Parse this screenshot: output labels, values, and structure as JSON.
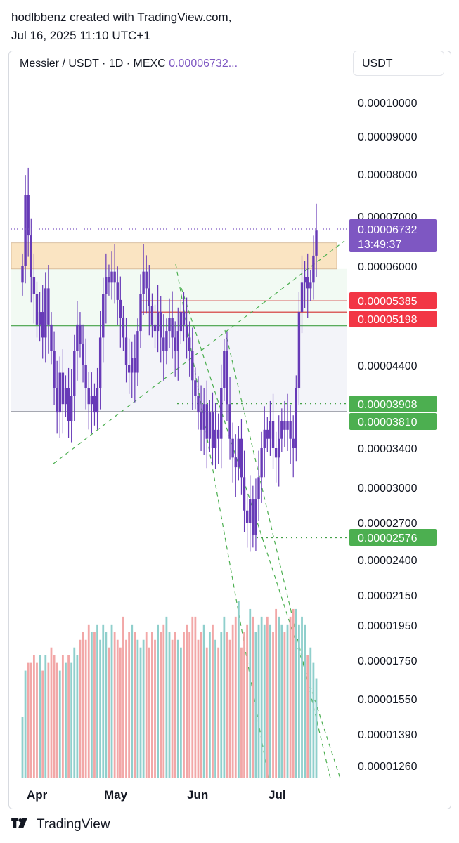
{
  "header": {
    "line1": "hodlbbenz created with TradingView.com,",
    "line2": "Jul 16, 2025 11:10 UTC+1"
  },
  "legend": {
    "symbol": "Messier / USDT · 1D · MEXC",
    "price": "0.00006732..."
  },
  "currency_button": "USDT",
  "footer": {
    "brand": "TradingView",
    "logo_icon": "tradingview-logo-icon"
  },
  "colors": {
    "candle": "#673ab7",
    "last_price": "#7e57c2",
    "red_label": "#f23645",
    "green_label": "#4caf50",
    "volume_up": "#8fcfcc",
    "volume_down": "#f2a7a7",
    "zone": "#f9dcae",
    "trendline": "#4caf50"
  },
  "chart_data": {
    "type": "candlestick",
    "symbol": "Messier / USDT",
    "interval": "1D",
    "exchange": "MEXC",
    "scale": "log",
    "x_ticks": [
      "Apr",
      "May",
      "Jun",
      "Jul"
    ],
    "y_ticks": [
      "0.00010000",
      "0.00009000",
      "0.00008000",
      "0.00007000",
      "0.00006000",
      "0.00004400",
      "0.00003400",
      "0.00003000",
      "0.00002700",
      "0.00002400",
      "0.00002150",
      "0.00001950",
      "0.00001750",
      "0.00001550",
      "0.00001390",
      "0.00001260"
    ],
    "ylim": [
      1.2e-05,
      0.000115
    ],
    "last_price": {
      "value": "0.00006732",
      "countdown": "13:49:37"
    },
    "price_labels": [
      {
        "value": "0.00005385",
        "color": "red"
      },
      {
        "value": "0.00005198",
        "color": "red"
      },
      {
        "value": "0.00003908",
        "color": "green"
      },
      {
        "value": "0.00003810",
        "color": "green"
      },
      {
        "value": "0.00002576",
        "color": "green"
      }
    ],
    "zones": [
      {
        "type": "resistance",
        "from": 5.95e-05,
        "to": 6.45e-05
      }
    ],
    "horizontal_lines": [
      {
        "value": 5.385e-05,
        "color": "red"
      },
      {
        "value": 5.198e-05,
        "color": "red"
      },
      {
        "value": 4.98e-05,
        "color": "green"
      },
      {
        "value": 3.81e-05,
        "color": "gray"
      }
    ],
    "close_path": [
      6e-05,
      7.5e-05,
      6.6e-05,
      5.8e-05,
      5.5e-05,
      5e-05,
      5.2e-05,
      4.8e-05,
      5.6e-05,
      5e-05,
      4.6e-05,
      4.1e-05,
      3.8e-05,
      4.3e-05,
      3.9e-05,
      4.1e-05,
      3.7e-05,
      4e-05,
      4.6e-05,
      5e-05,
      4.7e-05,
      4.4e-05,
      4.1e-05,
      3.9e-05,
      4e-05,
      3.8e-05,
      4.1e-05,
      4.8e-05,
      5.5e-05,
      5.8e-05,
      5.7e-05,
      5.9e-05,
      5.7e-05,
      5.4e-05,
      5.1e-05,
      4.8e-05,
      4.4e-05,
      4.3e-05,
      4.5e-05,
      4.3e-05,
      4.9e-05,
      5.5e-05,
      5.9e-05,
      5.6e-05,
      5.3e-05,
      5e-05,
      4.9e-05,
      5.2e-05,
      4.8e-05,
      4.6e-05,
      4.9e-05,
      5.1e-05,
      4.8e-05,
      4.6e-05,
      4.9e-05,
      5.2e-05,
      5e-05,
      4.8e-05,
      4.6e-05,
      4.2e-05,
      4e-05,
      3.8e-05,
      3.6e-05,
      3.9e-05,
      3.5e-05,
      3.8e-05,
      3.4e-05,
      3.6e-05,
      3.5e-05,
      4.1e-05,
      4.6e-05,
      3.9e-05,
      3.5e-05,
      3.3e-05,
      3.2e-05,
      3.5e-05,
      3.1e-05,
      2.8e-05,
      2.7e-05,
      2.9e-05,
      2.6e-05,
      2.9e-05,
      3.1e-05,
      3.4e-05,
      3.6e-05,
      3.5e-05,
      3.7e-05,
      3.4e-05,
      3.3e-05,
      3.5e-05,
      3.7e-05,
      3.6e-05,
      3.7e-05,
      3.5e-05,
      3.4e-05,
      4.1e-05,
      5.2e-05,
      5.7e-05,
      5.8e-05,
      5.6e-05,
      5.7e-05,
      6.2e-05,
      6.7e-05
    ],
    "volume_path": [
      8,
      14,
      15,
      15,
      16,
      15,
      16,
      14,
      16,
      15,
      17,
      16,
      15,
      14,
      16,
      15,
      16,
      15,
      17,
      16,
      18,
      19,
      18,
      20,
      19,
      19,
      20,
      18,
      20,
      19,
      17,
      20,
      19,
      18,
      17,
      21,
      18,
      19,
      20,
      19,
      18,
      17,
      18,
      19,
      17,
      19,
      18,
      20,
      19,
      20,
      21,
      19,
      18,
      19,
      18,
      17,
      19,
      20,
      19,
      21,
      21,
      18,
      19,
      20,
      17,
      19,
      20,
      18,
      17,
      19,
      21,
      19,
      18,
      20,
      21,
      23,
      17,
      19,
      20,
      22,
      21,
      19,
      20,
      21,
      20,
      21,
      20,
      19,
      22,
      21,
      20,
      19,
      20,
      21,
      22,
      22,
      20,
      21,
      20,
      16,
      17,
      15,
      13
    ],
    "volume_max": 24
  }
}
